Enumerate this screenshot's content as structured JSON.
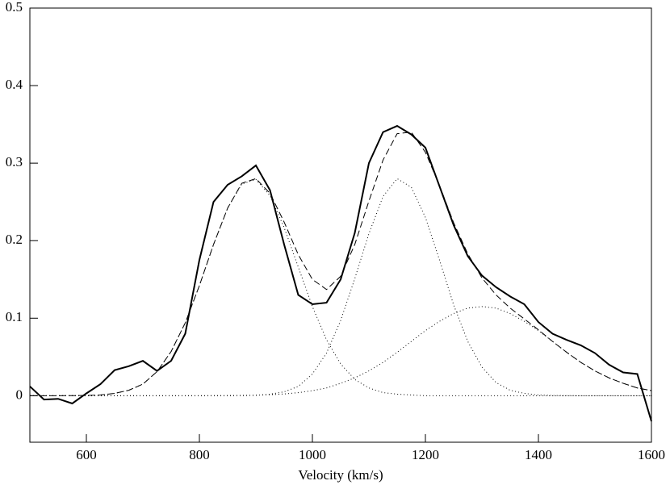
{
  "chart_data": {
    "type": "line",
    "x_label": "Velocity (km/s)",
    "x": [
      500,
      525,
      550,
      575,
      600,
      625,
      650,
      675,
      700,
      725,
      750,
      775,
      800,
      825,
      850,
      875,
      900,
      925,
      950,
      975,
      1000,
      1025,
      1050,
      1075,
      1100,
      1125,
      1150,
      1175,
      1200,
      1225,
      1250,
      1275,
      1300,
      1325,
      1350,
      1375,
      1400,
      1425,
      1450,
      1475,
      1500,
      1525,
      1550,
      1575,
      1600
    ],
    "series": [
      {
        "color": "#000000",
        "style": "solid",
        "width": 2,
        "values": [
          0.012,
          -0.005,
          -0.004,
          -0.01,
          0.003,
          0.015,
          0.033,
          0.038,
          0.045,
          0.032,
          0.045,
          0.08,
          0.175,
          0.25,
          0.272,
          0.283,
          0.297,
          0.265,
          0.195,
          0.13,
          0.118,
          0.12,
          0.15,
          0.21,
          0.3,
          0.34,
          0.348,
          0.337,
          0.32,
          0.27,
          0.22,
          0.18,
          0.155,
          0.14,
          0.128,
          0.118,
          0.095,
          0.08,
          0.072,
          0.065,
          0.055,
          0.04,
          0.03,
          0.028,
          -0.033
        ]
      },
      {
        "color": "#000000",
        "style": "dashed",
        "width": 1,
        "values": [
          0,
          0,
          0,
          0.0001,
          0.0003,
          0.001,
          0.003,
          0.007,
          0.015,
          0.031,
          0.057,
          0.094,
          0.142,
          0.195,
          0.242,
          0.274,
          0.28,
          0.261,
          0.224,
          0.182,
          0.15,
          0.137,
          0.154,
          0.195,
          0.251,
          0.304,
          0.338,
          0.34,
          0.314,
          0.271,
          0.223,
          0.183,
          0.152,
          0.13,
          0.113,
          0.099,
          0.085,
          0.07,
          0.056,
          0.043,
          0.032,
          0.023,
          0.016,
          0.01,
          0.0065
        ]
      },
      {
        "color": "#000000",
        "style": "dotted",
        "width": 1,
        "values": [
          0,
          0,
          0,
          0.0001,
          0.0003,
          0.001,
          0.003,
          0.007,
          0.015,
          0.031,
          0.057,
          0.094,
          0.142,
          0.195,
          0.242,
          0.273,
          0.279,
          0.258,
          0.217,
          0.166,
          0.115,
          0.072,
          0.041,
          0.021,
          0.01,
          0.004,
          0.002,
          0.001,
          0,
          0,
          0,
          0,
          0,
          0,
          0,
          0,
          0,
          0,
          0,
          0,
          0,
          0,
          0,
          0,
          0
        ]
      },
      {
        "color": "#000000",
        "style": "dotted",
        "width": 1,
        "values": [
          0,
          0,
          0,
          0,
          0,
          0,
          0,
          0,
          0,
          0,
          0,
          0,
          0,
          0,
          0,
          0.0001,
          0.0005,
          0.002,
          0.005,
          0.012,
          0.028,
          0.055,
          0.097,
          0.151,
          0.209,
          0.257,
          0.28,
          0.269,
          0.23,
          0.175,
          0.117,
          0.07,
          0.037,
          0.017,
          0.007,
          0.003,
          0.001,
          0.0003,
          0.0001,
          0,
          0,
          0,
          0,
          0,
          0
        ]
      },
      {
        "color": "#000000",
        "style": "dotted",
        "width": 1,
        "values": [
          0,
          0,
          0,
          0,
          0,
          0,
          0,
          0,
          0,
          0,
          0,
          0,
          0,
          0.0001,
          0.0002,
          0.0004,
          0.0007,
          0.0013,
          0.0023,
          0.0039,
          0.0065,
          0.01,
          0.016,
          0.023,
          0.032,
          0.043,
          0.056,
          0.07,
          0.084,
          0.096,
          0.106,
          0.113,
          0.115,
          0.113,
          0.106,
          0.096,
          0.084,
          0.07,
          0.056,
          0.043,
          0.032,
          0.023,
          0.016,
          0.01,
          0.0065
        ]
      }
    ],
    "xlim": [
      500,
      1600
    ],
    "ylim": [
      -0.06,
      0.5
    ],
    "xticks": [
      600,
      800,
      1000,
      1200,
      1400,
      1600
    ],
    "yticks": [
      0,
      0.1,
      0.2,
      0.3,
      0.4,
      0.5
    ]
  }
}
